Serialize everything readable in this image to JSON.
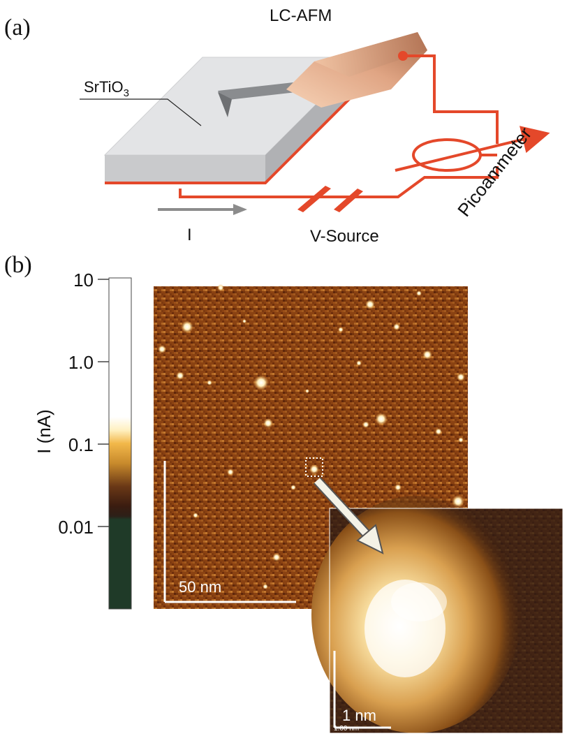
{
  "panel_a": {
    "label": "(a)",
    "title": "LC-AFM",
    "substrate_label": "SrTiO",
    "substrate_subscript": "3",
    "current_label": "I",
    "source_label": "V-Source",
    "meter_label": "Picoammeter"
  },
  "panel_b": {
    "label": "(b)",
    "colorbar": {
      "axis_label": "I (nA)",
      "ticks": [
        "10",
        "1.0",
        "0.1",
        "0.01"
      ],
      "scale": "log"
    },
    "main_scalebar": "50 nm",
    "inset_scalebar": "1 nm",
    "inset_small_text": "1.00 nm"
  },
  "colors": {
    "circuit": "#e4482a",
    "substrate_top": "#e3e4e6",
    "substrate_side": "#b9babd",
    "cantilever": "#8a8c8f",
    "current_arrow": "#8c8c8c",
    "afm_base": "#a86a4a",
    "map_bg": "#8a4212",
    "spot": "#fff2c8"
  }
}
